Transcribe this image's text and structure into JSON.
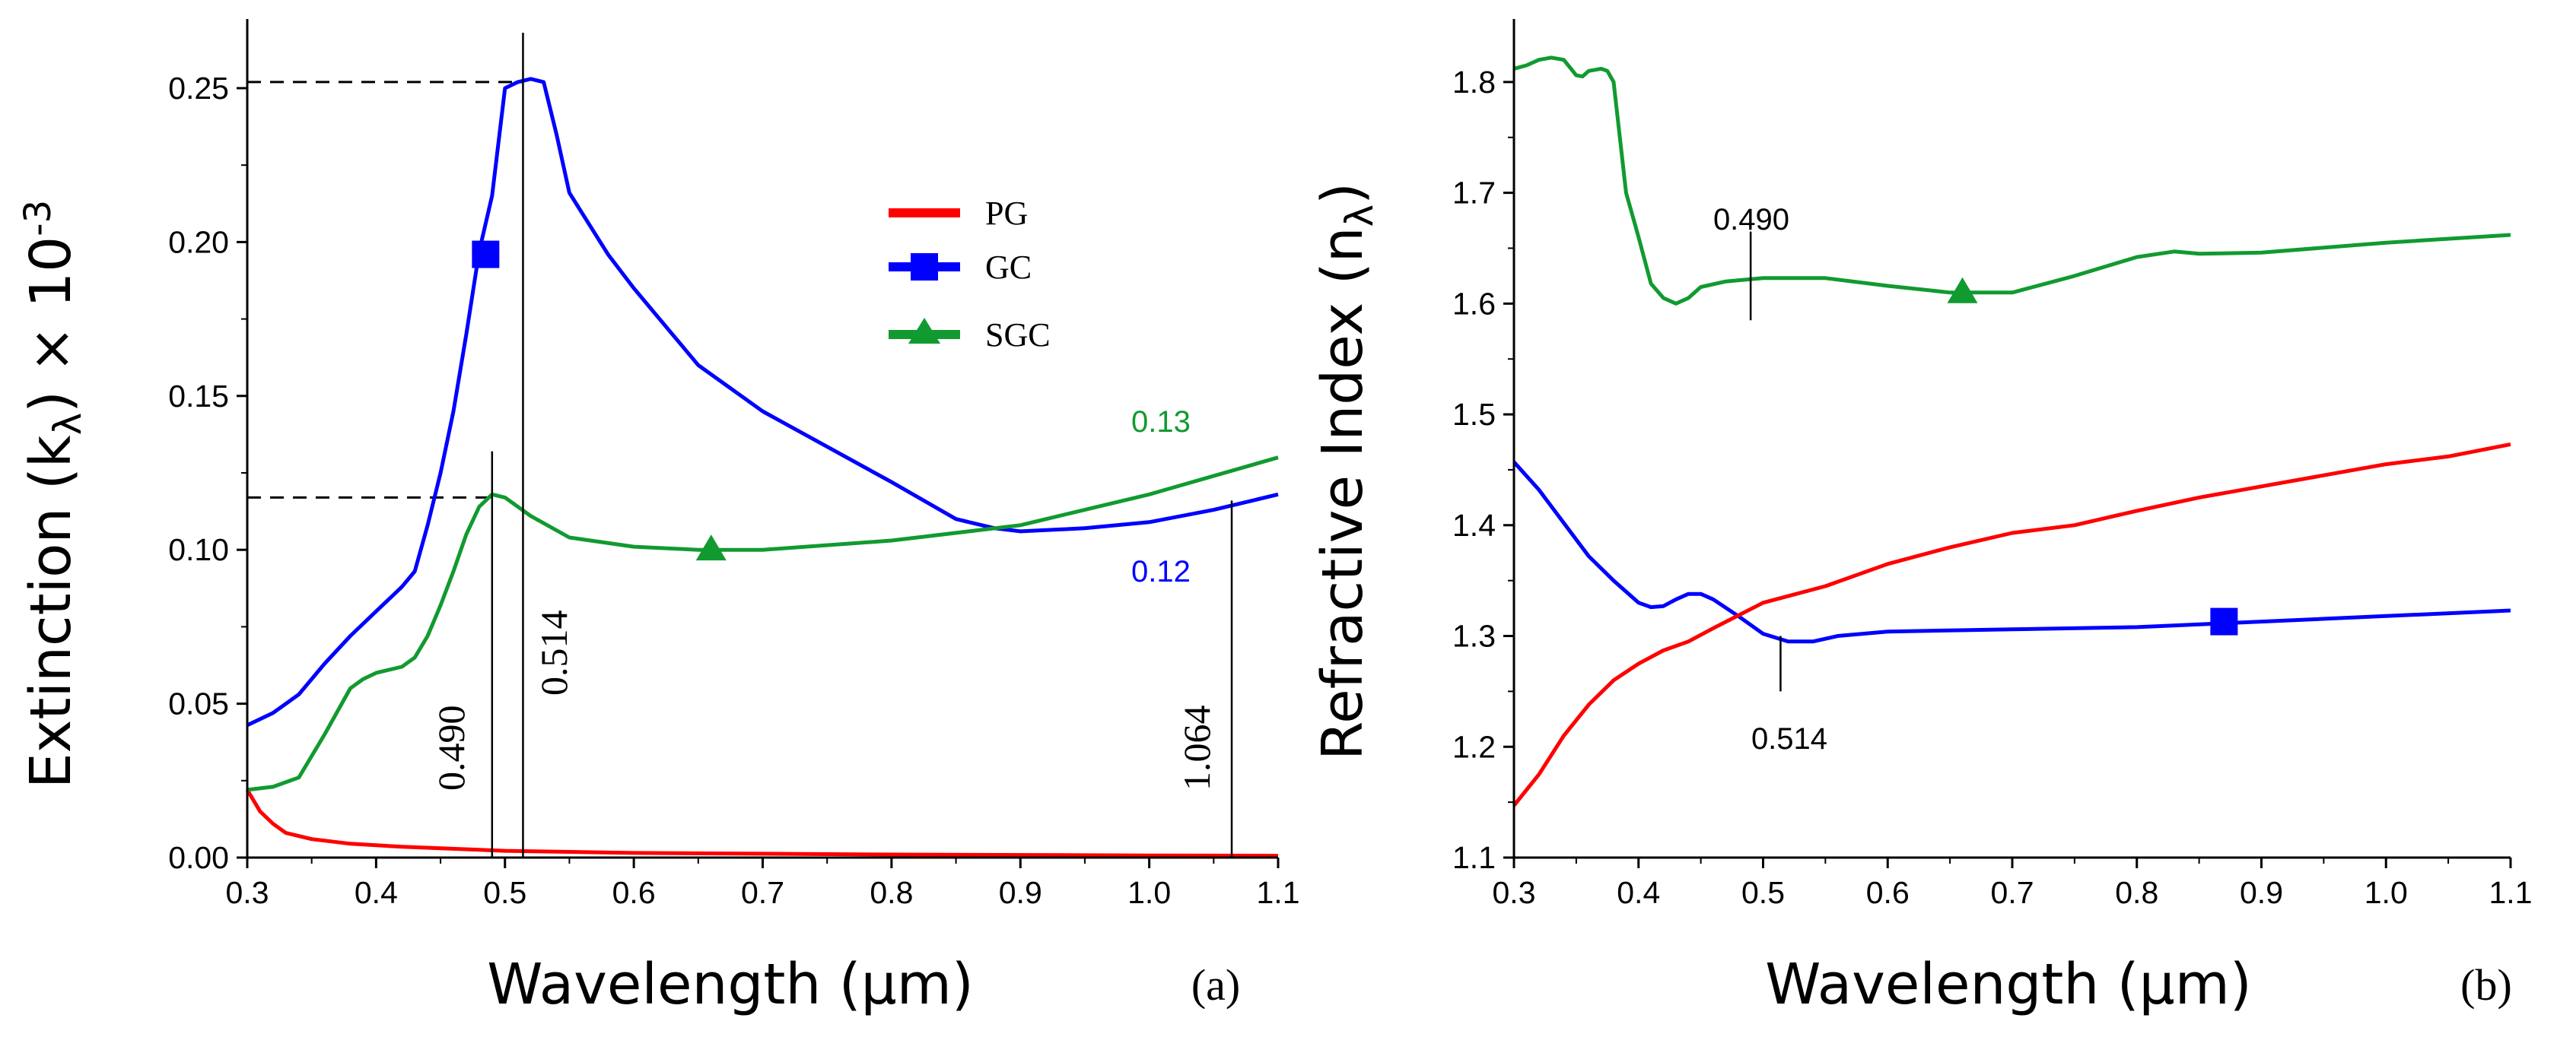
{
  "chart_data": [
    {
      "type": "line",
      "panel": "(a)",
      "xlabel": "Wavelength (µm)",
      "ylabel_main": "Extinction (k",
      "ylabel_sub": "λ",
      "ylabel_mid": ") × 10",
      "ylabel_exp": "-3",
      "xlim": [
        0.3,
        1.1
      ],
      "ylim": [
        0.0,
        0.27
      ],
      "xticks": [
        "0.3",
        "0.4",
        "0.5",
        "0.6",
        "0.7",
        "0.8",
        "0.9",
        "1.0",
        "1.1"
      ],
      "yticks": [
        "0.00",
        "0.05",
        "0.10",
        "0.15",
        "0.20",
        "0.25"
      ],
      "legend": [
        "PG",
        "GC",
        "SGC"
      ],
      "series": [
        {
          "name": "PG",
          "color": "#ff0000",
          "marker": "none",
          "x": [
            0.3,
            0.31,
            0.32,
            0.33,
            0.35,
            0.38,
            0.42,
            0.5,
            0.6,
            0.8,
            1.0,
            1.1
          ],
          "y": [
            0.022,
            0.015,
            0.011,
            0.008,
            0.006,
            0.0045,
            0.0035,
            0.0022,
            0.0015,
            0.001,
            0.0007,
            0.0006
          ]
        },
        {
          "name": "GC",
          "color": "#0000ff",
          "marker": "square",
          "marker_at": [
            0.485,
            0.196
          ],
          "x": [
            0.3,
            0.32,
            0.34,
            0.36,
            0.38,
            0.4,
            0.42,
            0.43,
            0.44,
            0.45,
            0.46,
            0.47,
            0.48,
            0.49,
            0.5,
            0.51,
            0.52,
            0.53,
            0.54,
            0.55,
            0.58,
            0.6,
            0.65,
            0.7,
            0.8,
            0.85,
            0.88,
            0.9,
            0.95,
            1.0,
            1.05,
            1.1
          ],
          "y": [
            0.043,
            0.047,
            0.053,
            0.063,
            0.072,
            0.08,
            0.088,
            0.093,
            0.108,
            0.125,
            0.145,
            0.17,
            0.197,
            0.215,
            0.25,
            0.252,
            0.253,
            0.252,
            0.235,
            0.216,
            0.196,
            0.185,
            0.16,
            0.145,
            0.122,
            0.11,
            0.107,
            0.106,
            0.107,
            0.109,
            0.113,
            0.118
          ]
        },
        {
          "name": "SGC",
          "color": "#119a30",
          "marker": "triangle",
          "marker_at": [
            0.66,
            0.1
          ],
          "x": [
            0.3,
            0.32,
            0.34,
            0.36,
            0.38,
            0.39,
            0.4,
            0.42,
            0.43,
            0.44,
            0.45,
            0.46,
            0.47,
            0.48,
            0.49,
            0.5,
            0.52,
            0.55,
            0.6,
            0.65,
            0.7,
            0.8,
            0.9,
            1.0,
            1.1
          ],
          "y": [
            0.022,
            0.023,
            0.026,
            0.04,
            0.055,
            0.058,
            0.06,
            0.062,
            0.065,
            0.072,
            0.082,
            0.093,
            0.105,
            0.114,
            0.118,
            0.117,
            0.111,
            0.104,
            0.101,
            0.1,
            0.1,
            0.103,
            0.108,
            0.118,
            0.13
          ]
        }
      ],
      "annotations": {
        "right_green": "0.13",
        "right_blue": "0.12",
        "vline_labels": [
          "0.490",
          "0.514",
          "1.064"
        ],
        "vlines_x": [
          0.49,
          0.514,
          1.064
        ],
        "hline_values": [
          0.252,
          0.117
        ]
      }
    },
    {
      "type": "line",
      "panel": "(b)",
      "xlabel": "Wavelength (µm)",
      "ylabel_main": "Refractive Index (n",
      "ylabel_sub": "λ",
      "ylabel_end": ")",
      "xlim": [
        0.3,
        1.1
      ],
      "ylim": [
        1.1,
        1.85
      ],
      "xticks": [
        "0.3",
        "0.4",
        "0.5",
        "0.6",
        "0.7",
        "0.8",
        "0.9",
        "1.0",
        "1.1"
      ],
      "yticks": [
        "1.1",
        "1.2",
        "1.3",
        "1.4",
        "1.5",
        "1.6",
        "1.7",
        "1.8"
      ],
      "series": [
        {
          "name": "SGC",
          "color": "#119a30",
          "marker": "triangle",
          "marker_at": [
            0.66,
            1.61
          ],
          "x": [
            0.3,
            0.31,
            0.32,
            0.33,
            0.34,
            0.35,
            0.355,
            0.36,
            0.37,
            0.375,
            0.38,
            0.39,
            0.4,
            0.41,
            0.42,
            0.43,
            0.44,
            0.45,
            0.47,
            0.5,
            0.55,
            0.6,
            0.65,
            0.7,
            0.75,
            0.8,
            0.83,
            0.85,
            0.9,
            1.0,
            1.1
          ],
          "y": [
            1.812,
            1.815,
            1.82,
            1.822,
            1.82,
            1.806,
            1.805,
            1.81,
            1.812,
            1.81,
            1.8,
            1.7,
            1.66,
            1.618,
            1.605,
            1.6,
            1.605,
            1.615,
            1.62,
            1.623,
            1.623,
            1.616,
            1.61,
            1.61,
            1.625,
            1.642,
            1.647,
            1.645,
            1.646,
            1.655,
            1.662
          ]
        },
        {
          "name": "GC",
          "color": "#0000ff",
          "marker": "square",
          "marker_at": [
            0.87,
            1.313
          ],
          "x": [
            0.3,
            0.32,
            0.34,
            0.36,
            0.38,
            0.4,
            0.41,
            0.42,
            0.43,
            0.44,
            0.45,
            0.46,
            0.48,
            0.5,
            0.52,
            0.54,
            0.56,
            0.6,
            0.7,
            0.8,
            0.9,
            1.0,
            1.1
          ],
          "y": [
            1.457,
            1.432,
            1.402,
            1.372,
            1.35,
            1.33,
            1.326,
            1.327,
            1.333,
            1.338,
            1.338,
            1.333,
            1.318,
            1.302,
            1.295,
            1.295,
            1.3,
            1.304,
            1.306,
            1.308,
            1.313,
            1.318,
            1.323
          ]
        },
        {
          "name": "PG",
          "color": "#ff0000",
          "marker": "none",
          "x": [
            0.3,
            0.32,
            0.34,
            0.36,
            0.38,
            0.4,
            0.42,
            0.44,
            0.46,
            0.5,
            0.55,
            0.6,
            0.65,
            0.7,
            0.75,
            0.8,
            0.85,
            0.9,
            0.95,
            1.0,
            1.05,
            1.1
          ],
          "y": [
            1.147,
            1.175,
            1.21,
            1.238,
            1.26,
            1.275,
            1.287,
            1.295,
            1.307,
            1.33,
            1.345,
            1.365,
            1.38,
            1.393,
            1.4,
            1.413,
            1.425,
            1.435,
            1.445,
            1.455,
            1.462,
            1.473
          ]
        }
      ],
      "annotations": {
        "label_top": "0.490",
        "label_bottom": "0.514",
        "tick_top_x": 0.49,
        "tick_top_y": [
          1.585,
          1.665
        ],
        "tick_bottom_x": 0.514,
        "tick_bottom_y": [
          1.25,
          1.3
        ]
      }
    }
  ]
}
